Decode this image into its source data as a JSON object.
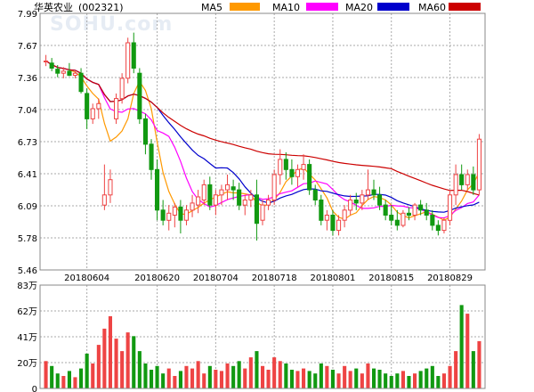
{
  "chart_data": {
    "type": "candlestick",
    "title": "华英农业",
    "code": "(002321)",
    "watermark": "SOHU.com",
    "ma_legend": [
      {
        "name": "MA5",
        "color": "#ff9900"
      },
      {
        "name": "MA10",
        "color": "#ff00ff"
      },
      {
        "name": "MA20",
        "color": "#0000cc"
      },
      {
        "name": "MA60",
        "color": "#cc0000"
      }
    ],
    "colors": {
      "up": "#ee4444",
      "down": "#119911",
      "grid": "#aaaaaa"
    },
    "price_ticks": [
      "7.99",
      "7.67",
      "7.36",
      "7.04",
      "6.73",
      "6.41",
      "6.09",
      "5.78",
      "5.46"
    ],
    "price_range": [
      5.46,
      7.99
    ],
    "volume_ticks": [
      "83万",
      "62万",
      "41万",
      "20万",
      "0"
    ],
    "volume_range": [
      0,
      83
    ],
    "date_labels": [
      {
        "index": 7,
        "label": "20180604"
      },
      {
        "index": 19,
        "label": "20180620"
      },
      {
        "index": 29,
        "label": "20180704"
      },
      {
        "index": 39,
        "label": "20180718"
      },
      {
        "index": 49,
        "label": "20180801"
      },
      {
        "index": 59,
        "label": "20180815"
      },
      {
        "index": 69,
        "label": "20180829"
      }
    ],
    "candles": [
      [
        7.52,
        7.58,
        7.47,
        7.52,
        22
      ],
      [
        7.5,
        7.55,
        7.42,
        7.45,
        18
      ],
      [
        7.44,
        7.48,
        7.36,
        7.4,
        12
      ],
      [
        7.4,
        7.46,
        7.35,
        7.42,
        10
      ],
      [
        7.42,
        7.5,
        7.37,
        7.38,
        14
      ],
      [
        7.38,
        7.42,
        7.35,
        7.4,
        9
      ],
      [
        7.4,
        7.45,
        7.2,
        7.22,
        16
      ],
      [
        7.2,
        7.25,
        6.85,
        6.95,
        28
      ],
      [
        6.95,
        7.1,
        6.9,
        7.05,
        20
      ],
      [
        7.05,
        7.15,
        6.95,
        7.1,
        35
      ],
      [
        6.1,
        6.5,
        6.05,
        6.2,
        48
      ],
      [
        6.2,
        6.45,
        6.12,
        6.35,
        58
      ],
      [
        6.95,
        7.2,
        6.9,
        7.15,
        40
      ],
      [
        7.15,
        7.4,
        7.1,
        7.35,
        30
      ],
      [
        7.35,
        7.75,
        7.3,
        7.7,
        45
      ],
      [
        7.7,
        7.8,
        7.4,
        7.45,
        42
      ],
      [
        7.4,
        7.45,
        6.9,
        6.95,
        30
      ],
      [
        6.95,
        7.0,
        6.6,
        6.7,
        20
      ],
      [
        6.7,
        6.75,
        6.35,
        6.45,
        15
      ],
      [
        6.45,
        6.55,
        5.95,
        6.05,
        18
      ],
      [
        6.05,
        6.15,
        5.9,
        5.95,
        12
      ],
      [
        5.95,
        6.1,
        5.85,
        6.02,
        16
      ],
      [
        6.0,
        6.12,
        5.88,
        6.08,
        10
      ],
      [
        6.08,
        6.15,
        5.82,
        5.95,
        14
      ],
      [
        5.95,
        6.1,
        5.9,
        6.05,
        18
      ],
      [
        6.05,
        6.2,
        5.98,
        6.12,
        16
      ],
      [
        6.1,
        6.25,
        6.02,
        6.18,
        22
      ],
      [
        6.15,
        6.35,
        6.1,
        6.3,
        12
      ],
      [
        6.3,
        6.38,
        6.05,
        6.1,
        18
      ],
      [
        6.1,
        6.25,
        6.0,
        6.2,
        15
      ],
      [
        6.2,
        6.3,
        6.1,
        6.25,
        14
      ],
      [
        6.25,
        6.4,
        6.15,
        6.3,
        20
      ],
      [
        6.28,
        6.35,
        6.15,
        6.25,
        18
      ],
      [
        6.25,
        6.32,
        6.05,
        6.1,
        22
      ],
      [
        6.1,
        6.2,
        6.0,
        6.15,
        16
      ],
      [
        6.15,
        6.25,
        6.08,
        6.2,
        25
      ],
      [
        6.2,
        6.35,
        5.75,
        5.92,
        30
      ],
      [
        5.95,
        6.15,
        5.9,
        6.1,
        18
      ],
      [
        6.1,
        6.2,
        6.05,
        6.15,
        15
      ],
      [
        6.15,
        6.45,
        6.1,
        6.4,
        25
      ],
      [
        6.4,
        6.65,
        6.3,
        6.55,
        22
      ],
      [
        6.55,
        6.62,
        6.35,
        6.45,
        20
      ],
      [
        6.45,
        6.55,
        6.3,
        6.38,
        15
      ],
      [
        6.38,
        6.5,
        6.28,
        6.45,
        14
      ],
      [
        6.45,
        6.6,
        6.35,
        6.5,
        16
      ],
      [
        6.5,
        6.55,
        6.2,
        6.25,
        14
      ],
      [
        6.25,
        6.3,
        6.1,
        6.15,
        12
      ],
      [
        6.15,
        6.2,
        5.9,
        5.95,
        20
      ],
      [
        5.95,
        6.05,
        5.85,
        6.0,
        18
      ],
      [
        6.0,
        6.05,
        5.8,
        5.85,
        15
      ],
      [
        5.85,
        6.0,
        5.8,
        5.95,
        12
      ],
      [
        5.95,
        6.1,
        5.88,
        6.05,
        18
      ],
      [
        6.05,
        6.2,
        6.0,
        6.15,
        14
      ],
      [
        6.15,
        6.22,
        6.05,
        6.12,
        16
      ],
      [
        6.12,
        6.25,
        6.05,
        6.2,
        12
      ],
      [
        6.2,
        6.45,
        6.15,
        6.25,
        20
      ],
      [
        6.25,
        6.35,
        6.15,
        6.2,
        16
      ],
      [
        6.2,
        6.28,
        6.05,
        6.1,
        15
      ],
      [
        6.1,
        6.15,
        5.95,
        6.0,
        12
      ],
      [
        6.0,
        6.1,
        5.9,
        5.95,
        10
      ],
      [
        5.95,
        6.05,
        5.85,
        5.9,
        12
      ],
      [
        5.9,
        6.05,
        5.88,
        6.02,
        14
      ],
      [
        6.02,
        6.08,
        5.95,
        6.0,
        10
      ],
      [
        6.0,
        6.12,
        5.95,
        6.1,
        12
      ],
      [
        6.1,
        6.15,
        6.0,
        6.05,
        14
      ],
      [
        6.05,
        6.12,
        5.95,
        6.0,
        16
      ],
      [
        6.0,
        6.05,
        5.85,
        5.9,
        18
      ],
      [
        5.9,
        5.95,
        5.8,
        5.85,
        10
      ],
      [
        5.85,
        5.98,
        5.82,
        5.95,
        12
      ],
      [
        5.95,
        6.25,
        5.9,
        6.2,
        18
      ],
      [
        6.2,
        6.5,
        6.1,
        6.4,
        30
      ],
      [
        6.4,
        6.5,
        6.25,
        6.3,
        67
      ],
      [
        6.3,
        6.45,
        6.25,
        6.4,
        60
      ],
      [
        6.4,
        6.48,
        6.2,
        6.25,
        30
      ],
      [
        6.25,
        6.8,
        6.2,
        6.75,
        38
      ]
    ]
  }
}
